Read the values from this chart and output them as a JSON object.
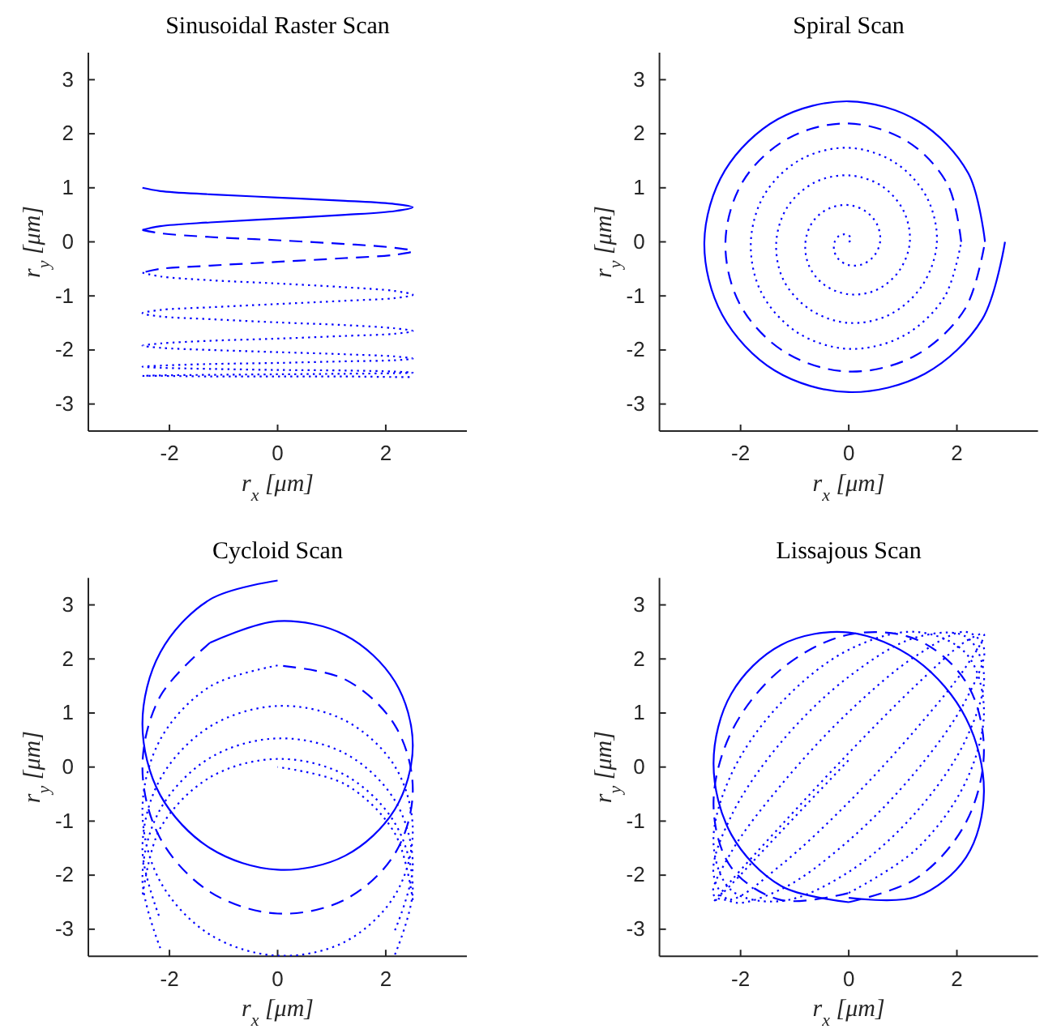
{
  "chart_data": [
    {
      "type": "line",
      "title": "Sinusoidal Raster Scan",
      "xlabel": "r$_{x}$ [μm]",
      "ylabel": "r$_{y}$ [μm]",
      "xlim": [
        -3.5,
        3.5
      ],
      "ylim": [
        -3.5,
        3.5
      ],
      "xticks": [
        -2,
        0,
        2
      ],
      "yticks": [
        -3,
        -2,
        -1,
        0,
        1,
        2,
        3
      ],
      "series": [
        {
          "color": "#0000ff",
          "line_style": "solid",
          "x": [
            -2.5,
            -2.17,
            -1.25,
            0,
            1.25,
            2.17,
            2.5,
            2.17,
            1.25,
            0,
            -1.25,
            -2.17,
            -2.5
          ],
          "values": [
            1.0,
            0.94,
            0.88,
            0.82,
            0.76,
            0.7,
            0.64,
            0.57,
            0.5,
            0.43,
            0.36,
            0.29,
            0.22
          ]
        },
        {
          "color": "#0000ff",
          "line_style": "dashed",
          "x": [
            -2.5,
            -2.17,
            -1.25,
            0,
            1.25,
            2.17,
            2.5,
            2.17,
            1.25,
            0,
            -1.25,
            -2.17,
            -2.5
          ],
          "values": [
            0.22,
            0.16,
            0.09,
            0.03,
            -0.04,
            -0.11,
            -0.17,
            -0.24,
            -0.3,
            -0.37,
            -0.44,
            -0.5,
            -0.57
          ]
        },
        {
          "color": "#0000ff",
          "line_style": "dotted",
          "x": [
            -2.5,
            -2.17,
            -1.25,
            0,
            1.25,
            2.17,
            2.5,
            2.17,
            1.25,
            0,
            -1.25,
            -2.17,
            -2.5,
            -2.17,
            -1.25,
            0,
            1.25,
            2.17,
            2.5,
            2.17,
            1.25,
            0,
            -1.25,
            -2.17,
            -2.5,
            -2.17,
            -1.25,
            0,
            1.25,
            2.17,
            2.5,
            2.17,
            1.25,
            0,
            -1.25,
            -2.17,
            -2.5,
            -2.17,
            -1.25,
            0,
            1.25,
            2.17,
            2.5,
            2.17,
            1.25,
            0,
            -1.25,
            -2.17,
            -2.5,
            -2.17,
            -1.25,
            0,
            1.25,
            2.17,
            2.5
          ],
          "values": [
            -0.57,
            -0.64,
            -0.71,
            -0.77,
            -0.84,
            -0.91,
            -0.98,
            -1.04,
            -1.09,
            -1.15,
            -1.21,
            -1.26,
            -1.32,
            -1.38,
            -1.43,
            -1.49,
            -1.54,
            -1.6,
            -1.65,
            -1.7,
            -1.74,
            -1.79,
            -1.83,
            -1.88,
            -1.92,
            -1.96,
            -2.0,
            -2.04,
            -2.08,
            -2.12,
            -2.16,
            -2.19,
            -2.21,
            -2.24,
            -2.26,
            -2.29,
            -2.31,
            -2.33,
            -2.35,
            -2.37,
            -2.38,
            -2.4,
            -2.42,
            -2.43,
            -2.44,
            -2.45,
            -2.46,
            -2.47,
            -2.48,
            -2.48,
            -2.49,
            -2.49,
            -2.49,
            -2.5,
            -2.5
          ]
        }
      ]
    },
    {
      "type": "line",
      "title": "Spiral Scan",
      "xlabel": "r$_{x}$ [μm]",
      "ylabel": "r$_{y}$ [μm]",
      "xlim": [
        -3.5,
        3.5
      ],
      "ylim": [
        -3.5,
        3.5
      ],
      "xticks": [
        -2,
        0,
        2
      ],
      "yticks": [
        -3,
        -2,
        -1,
        0,
        1,
        2,
        3
      ],
      "series": [
        {
          "color": "#0000ff",
          "line_style": "solid",
          "x": [
            2.52,
            2.21,
            1.29,
            0,
            -1.31,
            -2.29,
            -2.67,
            -2.34,
            -1.37,
            0,
            1.41,
            2.47,
            2.89
          ],
          "values": [
            0,
            1.27,
            2.23,
            2.6,
            2.27,
            1.32,
            0,
            -1.35,
            -2.38,
            -2.78,
            -2.44,
            -1.43,
            0
          ]
        },
        {
          "color": "#0000ff",
          "line_style": "dashed",
          "x": [
            2.08,
            1.83,
            1.08,
            0,
            -1.11,
            -1.95,
            -2.28,
            -2.01,
            -1.18,
            0,
            1.22,
            2.15,
            2.52
          ],
          "values": [
            0,
            1.06,
            1.86,
            2.19,
            1.92,
            1.13,
            0,
            -1.16,
            -2.04,
            -2.4,
            -2.11,
            -1.24,
            0
          ]
        },
        {
          "color": "#0000ff",
          "line_style": "dotted",
          "x": [
            0,
            0.03,
            0.04,
            0,
            -0.08,
            -0.18,
            -0.26,
            -0.27,
            -0.19,
            0,
            0.24,
            0.46,
            0.58,
            0.53,
            0.32,
            0,
            -0.36,
            -0.66,
            -0.8,
            -0.74,
            -0.46,
            0,
            0.51,
            0.93,
            1.13,
            1.01,
            0.6,
            0,
            -0.63,
            -1.13,
            -1.34,
            -1.21,
            -0.72,
            0,
            0.77,
            1.37,
            1.63,
            1.44,
            0.85,
            0,
            -0.88,
            -1.55,
            -1.81,
            -1.62,
            -0.96,
            0,
            1.01,
            1.77,
            2.08
          ],
          "values": [
            0,
            0.02,
            0.07,
            0.12,
            0.14,
            0.11,
            0,
            -0.16,
            -0.32,
            -0.43,
            -0.42,
            -0.27,
            0,
            0.31,
            0.56,
            0.68,
            0.62,
            0.38,
            0,
            -0.43,
            -0.79,
            -0.97,
            -0.89,
            -0.54,
            0,
            0.58,
            1.04,
            1.23,
            1.1,
            0.65,
            0,
            -0.7,
            -1.25,
            -1.5,
            -1.34,
            -0.79,
            0,
            0.83,
            1.47,
            1.74,
            1.53,
            0.89,
            0,
            -0.93,
            -1.67,
            -1.98,
            -1.74,
            -1.02,
            0
          ]
        }
      ]
    },
    {
      "type": "line",
      "title": "Cycloid Scan",
      "xlabel": "r$_{x}$ [μm]",
      "ylabel": "r$_{y}$ [μm]",
      "xlim": [
        -3.5,
        3.5
      ],
      "ylim": [
        -3.5,
        3.5
      ],
      "xticks": [
        -2,
        0,
        2
      ],
      "yticks": [
        -3,
        -2,
        -1,
        0,
        1,
        2,
        3
      ],
      "series": [
        {
          "color": "#0000ff",
          "line_style": "solid",
          "x": [
            0,
            -1.25,
            -2.17,
            -2.5,
            -2.17,
            -1.25,
            0,
            1.25,
            2.17,
            2.5,
            2.17,
            1.25,
            0,
            -1.25
          ],
          "values": [
            3.45,
            3.1,
            2.12,
            0.8,
            -0.52,
            -1.5,
            -1.9,
            -1.64,
            -0.78,
            0.4,
            1.58,
            2.44,
            2.7,
            2.3
          ]
        },
        {
          "color": "#0000ff",
          "line_style": "dashed",
          "x": [
            -1.25,
            -2.17,
            -2.5,
            -2.17,
            -1.25,
            0,
            1.25,
            2.17,
            2.5,
            2.17,
            1.25,
            0
          ],
          "values": [
            2.3,
            1.31,
            -0.01,
            -1.32,
            -2.31,
            -2.71,
            -2.45,
            -1.6,
            -0.42,
            0.77,
            1.62,
            1.88
          ]
        },
        {
          "color": "#0000ff",
          "line_style": "dotted",
          "x": [
            0,
            -1.25,
            -2.17,
            -2.5,
            -2.17,
            -1.25,
            0,
            1.25,
            2.17,
            2.5,
            2.17,
            1.25,
            0,
            -1.25,
            -2.17,
            -2.5,
            -2.17,
            null,
            2.17,
            2.5,
            2.17,
            1.25,
            0,
            -1.25,
            -2.17,
            -2.5,
            -2.17,
            null,
            2.17,
            2.5,
            2.17,
            1.25,
            0,
            -1.25,
            -2.17,
            -2.5,
            null,
            2.5,
            2.17,
            1.25,
            0
          ],
          "values": [
            1.88,
            1.49,
            0.51,
            -0.81,
            -2.12,
            -3.1,
            -3.49,
            -3.23,
            -2.37,
            -1.18,
            0.01,
            0.86,
            1.13,
            0.75,
            -0.22,
            -1.52,
            -2.82,
            null,
            -3.02,
            -1.82,
            -0.62,
            0.25,
            0.53,
            0.17,
            -0.78,
            -2.07,
            -3.35,
            null,
            -3.47,
            -2.26,
            -1.04,
            -0.15,
            0.15,
            -0.19,
            -1.13,
            -2.39,
            null,
            -2.46,
            -1.23,
            -0.32,
            0.0
          ]
        }
      ]
    },
    {
      "type": "line",
      "title": "Lissajous Scan",
      "xlabel": "r$_{x}$ [μm]",
      "ylabel": "r$_{y}$ [μm]",
      "xlim": [
        -3.5,
        3.5
      ],
      "ylim": [
        -3.5,
        3.5
      ],
      "xticks": [
        -2,
        0,
        2
      ],
      "yticks": [
        -3,
        -2,
        -1,
        0,
        1,
        2,
        3
      ],
      "series": [
        {
          "color": "#0000ff",
          "line_style": "solid",
          "x": [
            0,
            1.25,
            2.17,
            2.5,
            2.17,
            1.25,
            0,
            -1.25,
            -2.17,
            -2.5,
            -2.17,
            -1.25,
            0
          ],
          "values": [
            -2.42,
            -2.4,
            -1.67,
            -0.46,
            0.9,
            1.98,
            2.49,
            2.26,
            1.36,
            0.07,
            -1.25,
            -2.2,
            -2.5
          ]
        },
        {
          "color": "#0000ff",
          "line_style": "dashed",
          "x": [
            0,
            1.25,
            2.17,
            2.5,
            2.17,
            1.25,
            0,
            -1.25,
            -2.17,
            -2.5,
            -2.17,
            -1.25,
            0
          ],
          "values": [
            -2.5,
            -2.06,
            -1.02,
            0.33,
            1.57,
            2.36,
            2.45,
            1.81,
            0.65,
            -0.71,
            -1.86,
            -2.46,
            -2.33
          ]
        },
        {
          "color": "#0000ff",
          "line_style": "dotted",
          "x": [
            0,
            1.25,
            2.17,
            2.5,
            2.17,
            1.25,
            0,
            -1.25,
            -2.17,
            -2.5,
            -2.17,
            -1.25,
            0,
            1.25,
            2.17,
            2.5,
            2.17,
            1.25,
            0,
            -1.25,
            -2.17,
            -2.5,
            -2.17,
            -1.25,
            0,
            1.25,
            2.17,
            2.5,
            2.17,
            1.25,
            0,
            -1.25,
            -2.17,
            -2.5,
            -2.17,
            -1.25,
            0,
            1.25,
            2.17,
            2.5,
            2.17,
            1.25,
            0,
            -1.25,
            -2.17,
            -2.5,
            -2.17,
            -1.25,
            0
          ],
          "values": [
            -2.33,
            -1.52,
            -0.26,
            1.08,
            2.1,
            2.5,
            2.17,
            1.19,
            -0.13,
            -1.42,
            -2.28,
            -2.48,
            -1.94,
            -0.83,
            0.52,
            1.72,
            2.41,
            2.4,
            1.67,
            0.46,
            -0.9,
            -1.98,
            -2.49,
            -2.26,
            -1.36,
            -0.07,
            1.25,
            2.2,
            2.5,
            2.06,
            1.02,
            -0.33,
            -1.57,
            -2.36,
            -2.45,
            -1.81,
            -0.65,
            0.71,
            1.86,
            2.46,
            2.33,
            1.52,
            0.26,
            -1.08,
            -2.1,
            -2.5,
            -2.17,
            -1.19,
            0.13
          ]
        }
      ]
    }
  ]
}
